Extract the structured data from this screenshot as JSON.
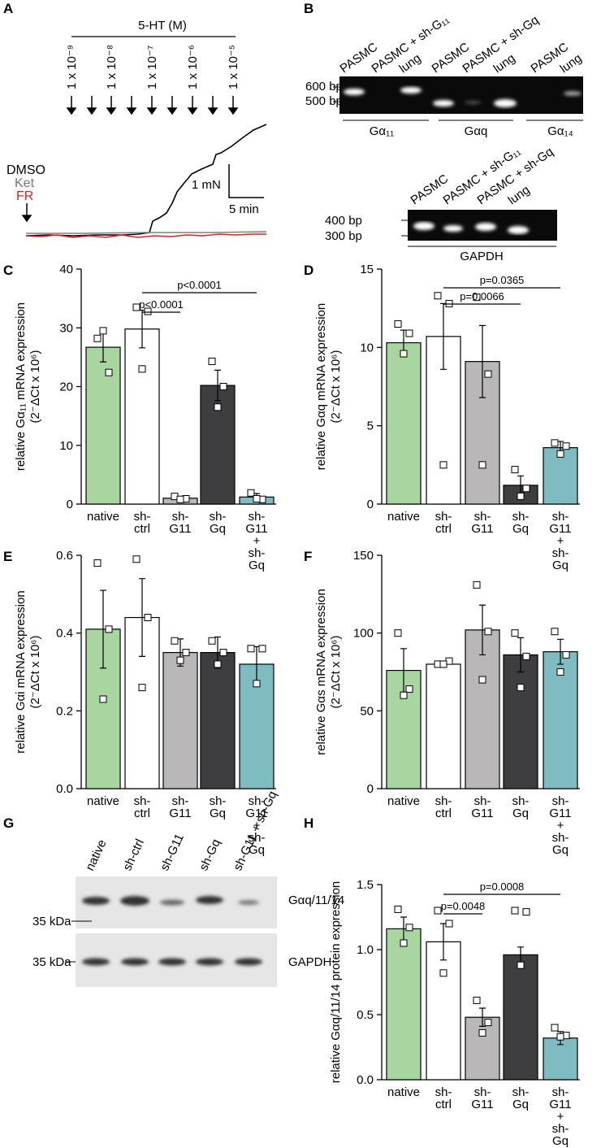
{
  "panel_labels": [
    "A",
    "B",
    "C",
    "D",
    "E",
    "F",
    "G",
    "H"
  ],
  "trace_panel": {
    "agonist": "5-HT (M)",
    "concentrations": [
      "1 x 10⁻⁹",
      "1 x 10⁻⁸",
      "1 x 10⁻⁷",
      "1 x 10⁻⁶",
      "1 x 10⁻⁵"
    ],
    "conditions": [
      "DMSO",
      "Ket",
      "FR"
    ],
    "scale_force": "1 mN",
    "scale_time": "5 min"
  },
  "gel_panel": {
    "gel1": {
      "lanes": [
        "PASMC",
        "PASMC + sh-G₁₁",
        "lung",
        "PASMC",
        "PASMC + sh-Gq",
        "lung",
        "PASMC",
        "lung"
      ],
      "markers": [
        "600 bp",
        "500 bp"
      ],
      "groups": [
        "Gα₁₁",
        "Gαq",
        "Gα₁₄"
      ]
    },
    "gel2": {
      "lanes": [
        "PASMC",
        "PASMC + sh-G₁₁",
        "PASMC + sh-Gq",
        "lung"
      ],
      "markers": [
        "400 bp",
        "300 bp"
      ],
      "label": "GAPDH"
    }
  },
  "blot_panel": {
    "lanes": [
      "native",
      "sh-ctrl",
      "sh-G11",
      "sh-Gq",
      "sh-G11 + sh-Gq"
    ],
    "markers": [
      "35 kDa",
      "35 kDa"
    ],
    "targets": [
      "Gαq/11/14",
      "GAPDH"
    ]
  },
  "chart_data": [
    {
      "type": "bar",
      "y_label": [
        "relative Gα₁₁ mRNA expression",
        "(2⁻ΔCt x 10⁶)"
      ],
      "categories": [
        "native",
        "sh-ctrl",
        "sh-G11",
        "sh-Gq",
        "sh-G11 + sh-Gq"
      ],
      "colors": [
        "#a9d5a0",
        "#ffffff",
        "#b9b7b7",
        "#3e3e40",
        "#7fbcc2"
      ],
      "values": [
        26.7,
        29.8,
        1.0,
        20.2,
        1.2
      ],
      "errors": [
        2.5,
        3.2,
        0.3,
        2.6,
        0.6
      ],
      "points": [
        [
          28.2,
          22.4,
          29.5
        ],
        [
          33.5,
          32.8,
          23.0
        ],
        [
          1.3,
          0.9,
          0.8
        ],
        [
          24.3,
          20.0,
          16.5
        ],
        [
          1.9,
          0.8,
          0.9
        ]
      ],
      "ylim": [
        0,
        40
      ],
      "yticks": [
        0,
        10,
        20,
        30,
        40
      ],
      "annotations": [
        "p<0.0001",
        "p<0.0001"
      ]
    },
    {
      "type": "bar",
      "y_label": [
        "relative Gαq mRNA expression",
        "(2⁻ΔCt x 10⁶)"
      ],
      "categories": [
        "native",
        "sh-ctrl",
        "sh-G11",
        "sh-Gq",
        "sh-G11 + sh-Gq"
      ],
      "colors": [
        "#a9d5a0",
        "#ffffff",
        "#b9b7b7",
        "#3e3e40",
        "#7fbcc2"
      ],
      "values": [
        10.3,
        10.7,
        9.1,
        1.2,
        3.6
      ],
      "errors": [
        0.8,
        2.1,
        2.3,
        0.6,
        0.4
      ],
      "points": [
        [
          11.5,
          10.9,
          9.6
        ],
        [
          13.3,
          12.8,
          2.5
        ],
        [
          13.2,
          8.3,
          2.5
        ],
        [
          2.2,
          1.0,
          0.5
        ],
        [
          3.9,
          3.7,
          3.2
        ]
      ],
      "ylim": [
        0,
        15
      ],
      "yticks": [
        0,
        5,
        10,
        15
      ],
      "annotations": [
        "p=0.0066",
        "p=0.0365"
      ]
    },
    {
      "type": "bar",
      "y_label": [
        "relative Gαi mRNA expression",
        "(2⁻ΔCt x 10⁶)"
      ],
      "categories": [
        "native",
        "sh-ctrl",
        "sh-G11",
        "sh-Gq",
        "sh-G11 + sh-Gq"
      ],
      "colors": [
        "#a9d5a0",
        "#ffffff",
        "#b9b7b7",
        "#3e3e40",
        "#7fbcc2"
      ],
      "values": [
        0.41,
        0.44,
        0.35,
        0.35,
        0.32
      ],
      "errors": [
        0.1,
        0.1,
        0.035,
        0.04,
        0.045
      ],
      "points": [
        [
          0.58,
          0.41,
          0.23
        ],
        [
          0.59,
          0.44,
          0.26
        ],
        [
          0.38,
          0.35,
          0.33
        ],
        [
          0.38,
          0.35,
          0.32
        ],
        [
          0.36,
          0.36,
          0.27
        ]
      ],
      "ylim": [
        0,
        0.6
      ],
      "yticks": [
        {
          "value": 0,
          "label": "0.0"
        },
        0.2,
        0.4,
        0.6
      ],
      "annotations": []
    },
    {
      "type": "bar",
      "y_label": [
        "relative Gαs mRNA expression",
        "(2⁻ΔCt x 10⁶)"
      ],
      "categories": [
        "native",
        "sh-ctrl",
        "sh-G11",
        "sh-Gq",
        "sh-G11 + sh-Gq"
      ],
      "colors": [
        "#a9d5a0",
        "#ffffff",
        "#b9b7b7",
        "#3e3e40",
        "#7fbcc2"
      ],
      "values": [
        76,
        80,
        102,
        86,
        88
      ],
      "errors": [
        14,
        2,
        16,
        11,
        8
      ],
      "points": [
        [
          100,
          64,
          60
        ],
        [
          80,
          82,
          80
        ],
        [
          131,
          101,
          70
        ],
        [
          100,
          85,
          65
        ],
        [
          101,
          86,
          75
        ]
      ],
      "ylim": [
        0,
        150
      ],
      "yticks": [
        0,
        50,
        100,
        150
      ],
      "annotations": []
    },
    {
      "type": "bar",
      "y_label": [
        "relative Gαq/11/14 protein expression"
      ],
      "categories": [
        "native",
        "sh-ctrl",
        "sh-G11",
        "sh-Gq",
        "sh-G11 + sh-Gq"
      ],
      "colors": [
        "#a9d5a0",
        "#ffffff",
        "#b9b7b7",
        "#3e3e40",
        "#7fbcc2"
      ],
      "values": [
        1.16,
        1.06,
        0.48,
        0.96,
        0.32
      ],
      "errors": [
        0.09,
        0.14,
        0.07,
        0.06,
        0.05
      ],
      "points": [
        [
          1.31,
          1.17,
          1.05
        ],
        [
          1.3,
          1.2,
          0.82
        ],
        [
          0.61,
          0.44,
          0.36
        ],
        [
          1.3,
          1.29,
          0.88
        ],
        [
          0.4,
          0.34,
          0.33
        ]
      ],
      "ylim": [
        0,
        1.5
      ],
      "yticks": [
        {
          "value": 0,
          "label": "0.0"
        },
        0.5,
        {
          "value": 1,
          "label": "1.0"
        },
        1.5
      ],
      "annotations": [
        "p=0.0048",
        "p=0.0008"
      ]
    }
  ]
}
